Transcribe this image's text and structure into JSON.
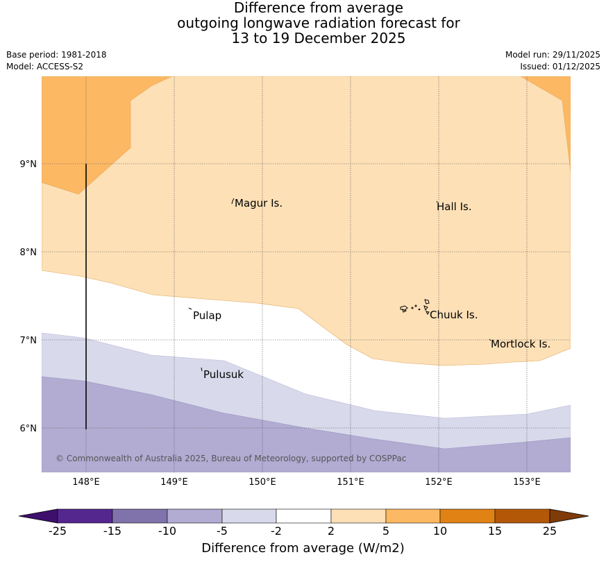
{
  "title": {
    "line1": "Difference from average",
    "line2": "outgoing longwave radiation forecast for",
    "line3": "13 to 19 December 2025"
  },
  "meta": {
    "base_period": "Base period: 1981-2018",
    "model": "Model: ACCESS-S2",
    "model_run": "Model run: 29/11/2025",
    "issued": "Issued: 01/12/2025"
  },
  "map": {
    "lon_ticks": [
      "148°E",
      "149°E",
      "150°E",
      "151°E",
      "152°E",
      "153°E"
    ],
    "lat_ticks": [
      "9°N",
      "8°N",
      "7°N",
      "6°N"
    ],
    "places": [
      {
        "name": "Magur Is.",
        "lon": 149.7,
        "lat": 8.56
      },
      {
        "name": "Hall Is.",
        "lon": 151.98,
        "lat": 8.52
      },
      {
        "name": "Pulap",
        "lon": 149.2,
        "lat": 7.3
      },
      {
        "name": "Chuuk Is.",
        "lon": 151.85,
        "lat": 7.3
      },
      {
        "name": "Mortlock Is.",
        "lon": 152.6,
        "lat": 6.97
      },
      {
        "name": "Pulusuk",
        "lon": 149.3,
        "lat": 6.63
      }
    ],
    "copyright": "© Commonwealth of Australia 2025, Bureau of Meteorology, supported by COSPPac"
  },
  "colorbar": {
    "labels": [
      "-25",
      "-15",
      "-10",
      "-5",
      "-2",
      "2",
      "5",
      "10",
      "15",
      "25"
    ],
    "colors": [
      "#3f0f6e",
      "#54278f",
      "#8073ac",
      "#b2abd2",
      "#d8daeb",
      "#ffffff",
      "#fde0b6",
      "#fdb863",
      "#e08214",
      "#b35806",
      "#7f3b08"
    ],
    "title": "Difference from average (W/m2)"
  },
  "colors": {
    "band_lavender_dark": "#b2abd2",
    "band_lavender_light": "#d8daeb",
    "band_white": "#ffffff",
    "band_peach": "#fde0b6",
    "band_orange": "#fdb863"
  }
}
